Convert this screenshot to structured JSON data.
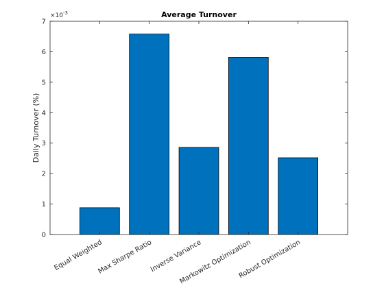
{
  "chart_data": {
    "type": "bar",
    "title": "Average Turnover",
    "xlabel": "",
    "ylabel": "Daily Turnover (%)",
    "y_exponent_label": {
      "base": "×10",
      "power": "-3"
    },
    "categories": [
      "Equal Weighted",
      "Max Sharpe Ratio",
      "Inverse Variance",
      "Markowitz Optimization",
      "Robust Optimization"
    ],
    "values": [
      0.00088,
      0.00658,
      0.00286,
      0.00582,
      0.00252
    ],
    "x_positions": [
      1,
      2,
      3,
      4,
      5
    ],
    "xlim": [
      0,
      6
    ],
    "ylim": [
      0,
      0.007
    ],
    "yticks": [
      0,
      0.001,
      0.002,
      0.003,
      0.004,
      0.005,
      0.006,
      0.007
    ],
    "ytick_labels": [
      "0",
      "1",
      "2",
      "3",
      "4",
      "5",
      "6",
      "7"
    ],
    "bar_color": "#0072BD",
    "grid": false,
    "legend": null
  }
}
